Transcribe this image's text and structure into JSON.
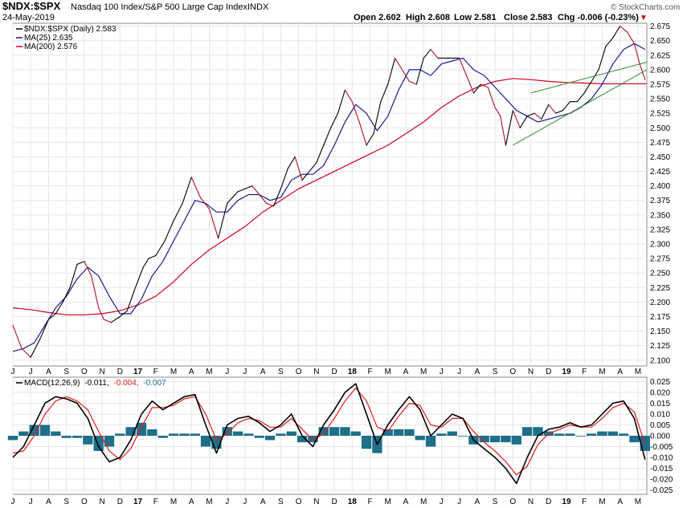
{
  "header": {
    "title": "$NDX:$SPX",
    "subtitle": "Nasdaq 100 Index/S&P 500 Large Cap Index",
    "exchange": "INDX",
    "date": "24-May-2019",
    "ohlc": {
      "open": "Open 2.602",
      "high": "High 2.608",
      "low": "Low 2.581",
      "close": "Close 2.583",
      "change": "Chg -0.006 (-0.23%)"
    },
    "down_arrow": "▼",
    "watermark": "© StockCharts.com"
  },
  "colors": {
    "price": "#000000",
    "price_down": "#b0102c",
    "ma25": "#1a1a8c",
    "ma200": "#cc0022",
    "trendline": "#2e8b2e",
    "macd_line": "#000000",
    "signal_line": "#e0201c",
    "histogram": "#1d6f8a",
    "grid": "#e6e6e6",
    "change_down": "#cc0000"
  },
  "legend": {
    "price": "$NDX:$SPX (Daily) 2.583",
    "ma25": "MA(25) 2.635",
    "ma200": "MA(200) 2.576"
  },
  "macd_legend": {
    "label": "MACD(12,26,9)",
    "macd": "-0.011,",
    "signal": "-0.004,",
    "hist": "-0.007"
  },
  "chart_data": [
    {
      "type": "line",
      "title": "$NDX:$SPX Nasdaq 100 Index/S&P 500 Large Cap Index",
      "x_axis": {
        "labels": [
          "J",
          "J",
          "A",
          "S",
          "O",
          "N",
          "D",
          "17",
          "F",
          "M",
          "A",
          "M",
          "J",
          "J",
          "A",
          "S",
          "O",
          "N",
          "D",
          "18",
          "F",
          "M",
          "A",
          "M",
          "J",
          "J",
          "A",
          "S",
          "O",
          "N",
          "D",
          "19",
          "F",
          "M",
          "A",
          "M"
        ],
        "year_labels": [
          "17",
          "18",
          "19"
        ]
      },
      "ylim": [
        2.09,
        2.68
      ],
      "yticks": [
        "2.675",
        "2.650",
        "2.625",
        "2.600",
        "2.575",
        "2.550",
        "2.525",
        "2.500",
        "2.475",
        "2.450",
        "2.425",
        "2.400",
        "2.375",
        "2.350",
        "2.325",
        "2.300",
        "2.275",
        "2.250",
        "2.225",
        "2.200",
        "2.175",
        "2.150",
        "2.125",
        "2.100"
      ],
      "x_range": [
        0,
        35.5
      ],
      "series": [
        {
          "name": "$NDX:$SPX (Daily)",
          "x": [
            0,
            0.5,
            1,
            1.5,
            2,
            2.4,
            2.8,
            3.2,
            3.6,
            4,
            4.4,
            4.8,
            5.1,
            5.5,
            6,
            6.4,
            6.8,
            7.3,
            7.6,
            8,
            8.5,
            9,
            9.5,
            10,
            10.5,
            11,
            11.5,
            12,
            12.3,
            12.6,
            13,
            13.4,
            13.8,
            14.2,
            14.6,
            15,
            15.4,
            15.8,
            16.2,
            16.6,
            17,
            17.4,
            17.8,
            18.2,
            18.6,
            19,
            19.4,
            19.8,
            20.2,
            20.6,
            21,
            21.4,
            21.8,
            22.2,
            22.6,
            23,
            23.4,
            23.8,
            24.2,
            24.6,
            25,
            25.4,
            25.8,
            26.2,
            26.6,
            27,
            27.3,
            27.6,
            28,
            28.4,
            28.8,
            29.2,
            29.6,
            30,
            30.4,
            30.8,
            31.2,
            31.6,
            32,
            32.4,
            32.8,
            33.2,
            33.6,
            34,
            34.4,
            34.8,
            35.1,
            35.4
          ],
          "values": [
            2.16,
            2.12,
            2.105,
            2.135,
            2.17,
            2.18,
            2.2,
            2.225,
            2.265,
            2.27,
            2.245,
            2.19,
            2.17,
            2.165,
            2.175,
            2.185,
            2.22,
            2.26,
            2.275,
            2.28,
            2.305,
            2.34,
            2.37,
            2.415,
            2.38,
            2.36,
            2.31,
            2.37,
            2.38,
            2.39,
            2.395,
            2.4,
            2.385,
            2.37,
            2.365,
            2.395,
            2.43,
            2.45,
            2.41,
            2.425,
            2.44,
            2.47,
            2.5,
            2.525,
            2.565,
            2.545,
            2.51,
            2.47,
            2.49,
            2.545,
            2.575,
            2.62,
            2.6,
            2.58,
            2.575,
            2.62,
            2.635,
            2.62,
            2.62,
            2.62,
            2.62,
            2.59,
            2.56,
            2.575,
            2.57,
            2.535,
            2.52,
            2.47,
            2.53,
            2.5,
            2.52,
            2.525,
            2.515,
            2.54,
            2.525,
            2.53,
            2.545,
            2.545,
            2.56,
            2.58,
            2.6,
            2.64,
            2.655,
            2.675,
            2.665,
            2.645,
            2.61,
            2.583
          ]
        },
        {
          "name": "MA(25)",
          "x": [
            0,
            0.6,
            1.2,
            1.8,
            2.4,
            3,
            3.6,
            4.2,
            4.8,
            5.4,
            6,
            6.6,
            7.2,
            7.8,
            8.4,
            9,
            9.6,
            10.2,
            10.8,
            11.4,
            12,
            12.6,
            13.2,
            13.8,
            14.4,
            15,
            15.6,
            16.2,
            16.8,
            17.4,
            18,
            18.6,
            19.2,
            19.8,
            20.4,
            21,
            21.6,
            22.2,
            22.8,
            23.4,
            24,
            24.6,
            25.2,
            25.8,
            26.4,
            27,
            27.6,
            28.2,
            28.8,
            29.4,
            30,
            30.6,
            31.2,
            31.8,
            32.4,
            33,
            33.6,
            34.2,
            34.8,
            35.4
          ],
          "values": [
            2.115,
            2.12,
            2.13,
            2.16,
            2.19,
            2.21,
            2.24,
            2.26,
            2.245,
            2.21,
            2.18,
            2.18,
            2.205,
            2.245,
            2.27,
            2.305,
            2.34,
            2.375,
            2.37,
            2.355,
            2.355,
            2.375,
            2.385,
            2.385,
            2.375,
            2.38,
            2.41,
            2.42,
            2.42,
            2.435,
            2.47,
            2.51,
            2.54,
            2.525,
            2.495,
            2.52,
            2.565,
            2.6,
            2.6,
            2.59,
            2.61,
            2.615,
            2.62,
            2.6,
            2.59,
            2.57,
            2.55,
            2.53,
            2.52,
            2.51,
            2.515,
            2.52,
            2.525,
            2.535,
            2.55,
            2.575,
            2.61,
            2.635,
            2.645,
            2.635
          ]
        },
        {
          "name": "MA(200)",
          "x": [
            0,
            1,
            2,
            3,
            4,
            5,
            6,
            7,
            8,
            9,
            10,
            11,
            12,
            13,
            14,
            15,
            16,
            17,
            18,
            19,
            20,
            21,
            22,
            23,
            24,
            25,
            26,
            27,
            28,
            29,
            30,
            31,
            32,
            33,
            34,
            35,
            35.5
          ],
          "values": [
            2.19,
            2.187,
            2.182,
            2.178,
            2.178,
            2.18,
            2.185,
            2.195,
            2.21,
            2.235,
            2.265,
            2.29,
            2.31,
            2.33,
            2.355,
            2.375,
            2.395,
            2.41,
            2.425,
            2.44,
            2.455,
            2.47,
            2.49,
            2.51,
            2.535,
            2.555,
            2.57,
            2.58,
            2.585,
            2.583,
            2.58,
            2.578,
            2.577,
            2.576,
            2.576,
            2.576,
            2.576
          ]
        }
      ],
      "trendlines": [
        {
          "name": "lower-support",
          "x": [
            28,
            35.5
          ],
          "values": [
            2.47,
            2.6
          ]
        },
        {
          "name": "upper-resistance",
          "x": [
            29,
            35.5
          ],
          "values": [
            2.56,
            2.613
          ]
        }
      ]
    },
    {
      "type": "line",
      "title": "MACD(12,26,9)",
      "ylim": [
        -0.027,
        0.027
      ],
      "yticks": [
        "0.025",
        "0.020",
        "0.015",
        "0.010",
        "0.005",
        "0.000",
        "-0.005",
        "-0.010",
        "-0.015",
        "-0.020",
        "-0.025"
      ],
      "x_range": [
        0,
        35.5
      ],
      "series": [
        {
          "name": "MACD",
          "x": [
            0,
            0.6,
            1.2,
            1.8,
            2.4,
            3,
            3.6,
            4.2,
            4.8,
            5.4,
            6,
            6.6,
            7.2,
            7.8,
            8.4,
            9,
            9.6,
            10.2,
            10.8,
            11.4,
            12,
            12.6,
            13.2,
            13.8,
            14.4,
            15,
            15.6,
            16.2,
            16.8,
            17.4,
            18,
            18.6,
            19.2,
            19.8,
            20.4,
            21,
            21.6,
            22.2,
            22.8,
            23.4,
            24,
            24.6,
            25.2,
            25.8,
            26.4,
            27,
            27.6,
            28.2,
            28.8,
            29.4,
            30,
            30.6,
            31.2,
            31.8,
            32.4,
            33,
            33.6,
            34.2,
            34.8,
            35.4
          ],
          "values": [
            -0.01,
            -0.005,
            0.005,
            0.015,
            0.018,
            0.017,
            0.015,
            0.008,
            -0.005,
            -0.012,
            -0.01,
            -0.002,
            0.01,
            0.016,
            0.012,
            0.015,
            0.018,
            0.019,
            0.005,
            -0.008,
            0.005,
            0.008,
            0.009,
            0.006,
            0.002,
            0.005,
            0.01,
            0.0,
            -0.005,
            0.005,
            0.012,
            0.02,
            0.024,
            0.01,
            -0.004,
            0.005,
            0.012,
            0.018,
            0.012,
            0.0,
            0.005,
            0.01,
            0.008,
            -0.002,
            -0.006,
            -0.01,
            -0.015,
            -0.022,
            -0.01,
            0.0,
            0.003,
            0.004,
            0.006,
            0.004,
            0.005,
            0.01,
            0.015,
            0.016,
            0.008,
            -0.011
          ]
        },
        {
          "name": "Signal",
          "x": [
            0,
            0.6,
            1.2,
            1.8,
            2.4,
            3,
            3.6,
            4.2,
            4.8,
            5.4,
            6,
            6.6,
            7.2,
            7.8,
            8.4,
            9,
            9.6,
            10.2,
            10.8,
            11.4,
            12,
            12.6,
            13.2,
            13.8,
            14.4,
            15,
            15.6,
            16.2,
            16.8,
            17.4,
            18,
            18.6,
            19.2,
            19.8,
            20.4,
            21,
            21.6,
            22.2,
            22.8,
            23.4,
            24,
            24.6,
            25.2,
            25.8,
            26.4,
            27,
            27.6,
            28.2,
            28.8,
            29.4,
            30,
            30.6,
            31.2,
            31.8,
            32.4,
            33,
            33.6,
            34.2,
            34.8,
            35.4
          ],
          "values": [
            -0.008,
            -0.007,
            0.0,
            0.01,
            0.016,
            0.018,
            0.016,
            0.012,
            0.002,
            -0.007,
            -0.011,
            -0.006,
            0.004,
            0.013,
            0.013,
            0.014,
            0.017,
            0.018,
            0.01,
            -0.002,
            0.001,
            0.006,
            0.008,
            0.007,
            0.004,
            0.004,
            0.008,
            0.003,
            -0.002,
            0.001,
            0.008,
            0.016,
            0.022,
            0.016,
            0.004,
            0.002,
            0.009,
            0.015,
            0.014,
            0.005,
            0.004,
            0.008,
            0.008,
            0.002,
            -0.003,
            -0.007,
            -0.012,
            -0.018,
            -0.014,
            -0.004,
            0.001,
            0.003,
            0.005,
            0.004,
            0.004,
            0.008,
            0.013,
            0.015,
            0.011,
            -0.004
          ]
        }
      ],
      "histogram": {
        "x": [
          0,
          0.6,
          1.2,
          1.8,
          2.4,
          3,
          3.6,
          4.2,
          4.8,
          5.4,
          6,
          6.6,
          7.2,
          7.8,
          8.4,
          9,
          9.6,
          10.2,
          10.8,
          11.4,
          12,
          12.6,
          13.2,
          13.8,
          14.4,
          15,
          15.6,
          16.2,
          16.8,
          17.4,
          18,
          18.6,
          19.2,
          19.8,
          20.4,
          21,
          21.6,
          22.2,
          22.8,
          23.4,
          24,
          24.6,
          25.2,
          25.8,
          26.4,
          27,
          27.6,
          28.2,
          28.8,
          29.4,
          30,
          30.6,
          31.2,
          31.8,
          32.4,
          33,
          33.6,
          34.2,
          34.8,
          35.4
        ],
        "values": [
          -0.002,
          0.002,
          0.005,
          0.005,
          0.002,
          -0.001,
          -0.001,
          -0.004,
          -0.007,
          -0.005,
          0.001,
          0.004,
          0.006,
          0.003,
          -0.001,
          0.001,
          0.001,
          0.001,
          -0.005,
          -0.006,
          0.004,
          0.002,
          0.001,
          -0.001,
          -0.002,
          0.001,
          0.002,
          -0.003,
          -0.003,
          0.004,
          0.004,
          0.004,
          0.002,
          -0.006,
          -0.008,
          0.003,
          0.003,
          0.003,
          -0.002,
          -0.005,
          0.001,
          0.002,
          0.0,
          -0.004,
          -0.003,
          -0.003,
          -0.003,
          -0.004,
          0.004,
          0.004,
          0.002,
          0.001,
          0.001,
          0.0,
          0.001,
          0.002,
          0.002,
          0.001,
          -0.003,
          -0.007
        ]
      }
    }
  ]
}
